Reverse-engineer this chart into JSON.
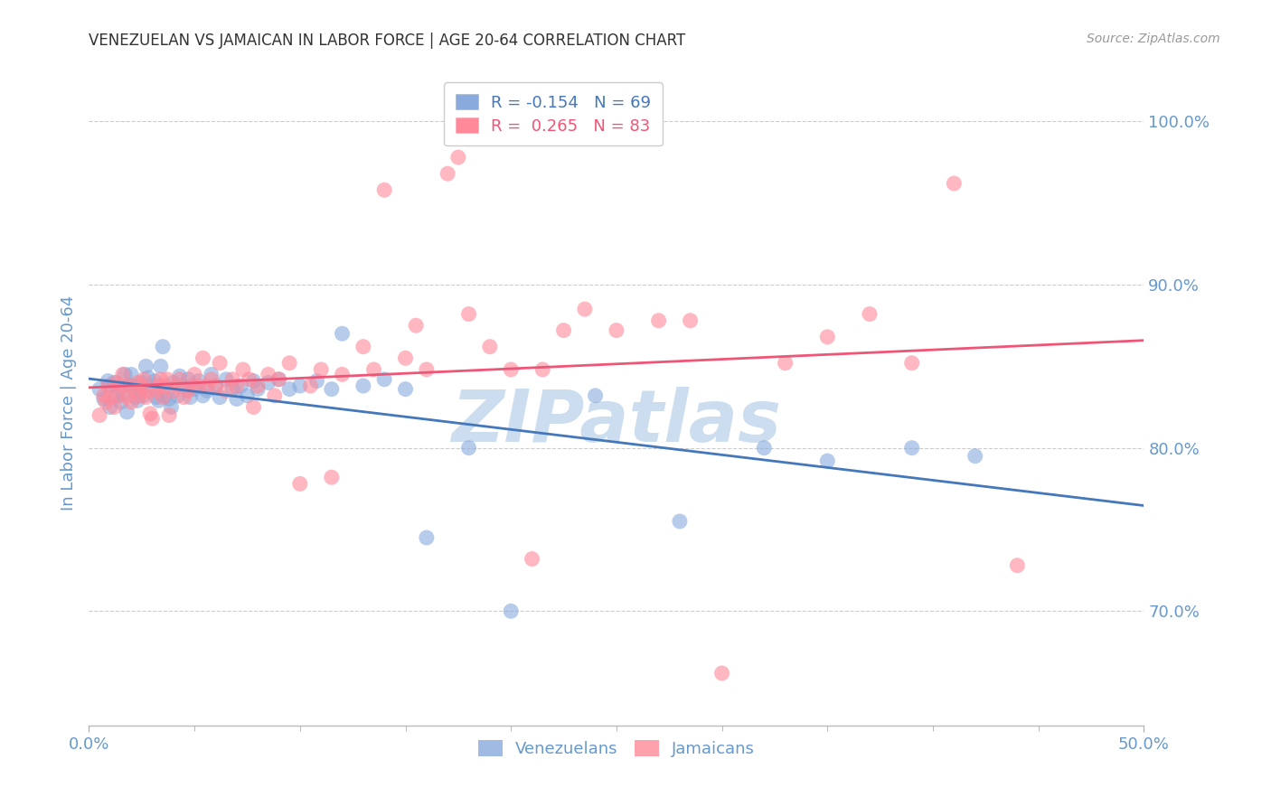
{
  "title": "VENEZUELAN VS JAMAICAN IN LABOR FORCE | AGE 20-64 CORRELATION CHART",
  "source": "Source: ZipAtlas.com",
  "ylabel": "In Labor Force | Age 20-64",
  "xlim": [
    0.0,
    0.5
  ],
  "ylim": [
    0.63,
    1.025
  ],
  "yticks": [
    0.7,
    0.8,
    0.9,
    1.0
  ],
  "ytick_labels": [
    "70.0%",
    "80.0%",
    "90.0%",
    "100.0%"
  ],
  "xticks_minor": [
    0.0,
    0.05,
    0.1,
    0.15,
    0.2,
    0.25,
    0.3,
    0.35,
    0.4,
    0.45,
    0.5
  ],
  "xticks_labeled": [
    0.0,
    0.5
  ],
  "xtick_labels": [
    "0.0%",
    "50.0%"
  ],
  "blue_R": -0.154,
  "blue_N": 69,
  "pink_R": 0.265,
  "pink_N": 83,
  "blue_color": "#88AADD",
  "pink_color": "#FF8899",
  "blue_line_color": "#4477BB",
  "pink_line_color": "#EE5577",
  "watermark": "ZIPatlas",
  "watermark_color": "#CCDDF0",
  "background_color": "#FFFFFF",
  "grid_color": "#CCCCCC",
  "axis_tick_color": "#6699CC",
  "title_color": "#333333",
  "source_color": "#999999",
  "legend_text_blue": "#4477BB",
  "legend_text_pink": "#EE5577",
  "venezuelan_x": [
    0.005,
    0.007,
    0.009,
    0.01,
    0.01,
    0.012,
    0.013,
    0.015,
    0.016,
    0.017,
    0.018,
    0.019,
    0.02,
    0.021,
    0.022,
    0.023,
    0.024,
    0.025,
    0.026,
    0.027,
    0.028,
    0.03,
    0.031,
    0.032,
    0.033,
    0.034,
    0.035,
    0.036,
    0.038,
    0.039,
    0.04,
    0.042,
    0.043,
    0.045,
    0.047,
    0.048,
    0.05,
    0.052,
    0.054,
    0.056,
    0.058,
    0.06,
    0.062,
    0.065,
    0.068,
    0.07,
    0.072,
    0.075,
    0.078,
    0.08,
    0.085,
    0.09,
    0.095,
    0.1,
    0.108,
    0.115,
    0.12,
    0.13,
    0.14,
    0.15,
    0.16,
    0.18,
    0.2,
    0.24,
    0.28,
    0.32,
    0.35,
    0.39,
    0.42
  ],
  "venezuelan_y": [
    0.836,
    0.83,
    0.841,
    0.825,
    0.838,
    0.84,
    0.832,
    0.828,
    0.833,
    0.845,
    0.822,
    0.838,
    0.845,
    0.838,
    0.831,
    0.829,
    0.835,
    0.84,
    0.832,
    0.85,
    0.843,
    0.838,
    0.841,
    0.831,
    0.829,
    0.85,
    0.862,
    0.832,
    0.83,
    0.825,
    0.84,
    0.832,
    0.844,
    0.838,
    0.842,
    0.831,
    0.836,
    0.841,
    0.832,
    0.835,
    0.845,
    0.838,
    0.831,
    0.842,
    0.836,
    0.83,
    0.838,
    0.832,
    0.841,
    0.836,
    0.84,
    0.842,
    0.836,
    0.838,
    0.841,
    0.836,
    0.87,
    0.838,
    0.842,
    0.836,
    0.745,
    0.8,
    0.7,
    0.832,
    0.755,
    0.8,
    0.792,
    0.8,
    0.795
  ],
  "jamaican_x": [
    0.005,
    0.007,
    0.008,
    0.009,
    0.01,
    0.012,
    0.013,
    0.014,
    0.015,
    0.016,
    0.018,
    0.019,
    0.02,
    0.022,
    0.023,
    0.024,
    0.025,
    0.026,
    0.027,
    0.028,
    0.029,
    0.03,
    0.032,
    0.033,
    0.034,
    0.035,
    0.036,
    0.037,
    0.038,
    0.04,
    0.042,
    0.043,
    0.045,
    0.047,
    0.049,
    0.05,
    0.052,
    0.054,
    0.056,
    0.058,
    0.06,
    0.062,
    0.065,
    0.068,
    0.07,
    0.073,
    0.076,
    0.078,
    0.08,
    0.085,
    0.088,
    0.09,
    0.095,
    0.1,
    0.105,
    0.11,
    0.115,
    0.12,
    0.13,
    0.135,
    0.14,
    0.15,
    0.155,
    0.16,
    0.17,
    0.175,
    0.18,
    0.19,
    0.2,
    0.21,
    0.215,
    0.225,
    0.235,
    0.25,
    0.27,
    0.285,
    0.3,
    0.33,
    0.35,
    0.37,
    0.39,
    0.41,
    0.44
  ],
  "jamaican_y": [
    0.82,
    0.832,
    0.828,
    0.838,
    0.831,
    0.825,
    0.84,
    0.832,
    0.838,
    0.845,
    0.831,
    0.838,
    0.828,
    0.835,
    0.84,
    0.832,
    0.838,
    0.842,
    0.831,
    0.835,
    0.821,
    0.818,
    0.835,
    0.838,
    0.842,
    0.831,
    0.838,
    0.842,
    0.82,
    0.835,
    0.838,
    0.842,
    0.831,
    0.835,
    0.838,
    0.845,
    0.838,
    0.855,
    0.838,
    0.842,
    0.838,
    0.852,
    0.835,
    0.842,
    0.838,
    0.848,
    0.842,
    0.825,
    0.838,
    0.845,
    0.832,
    0.842,
    0.852,
    0.778,
    0.838,
    0.848,
    0.782,
    0.845,
    0.862,
    0.848,
    0.958,
    0.855,
    0.875,
    0.848,
    0.968,
    0.978,
    0.882,
    0.862,
    0.848,
    0.732,
    0.848,
    0.872,
    0.885,
    0.872,
    0.878,
    0.878,
    0.662,
    0.852,
    0.868,
    0.882,
    0.852,
    0.962,
    0.728
  ]
}
